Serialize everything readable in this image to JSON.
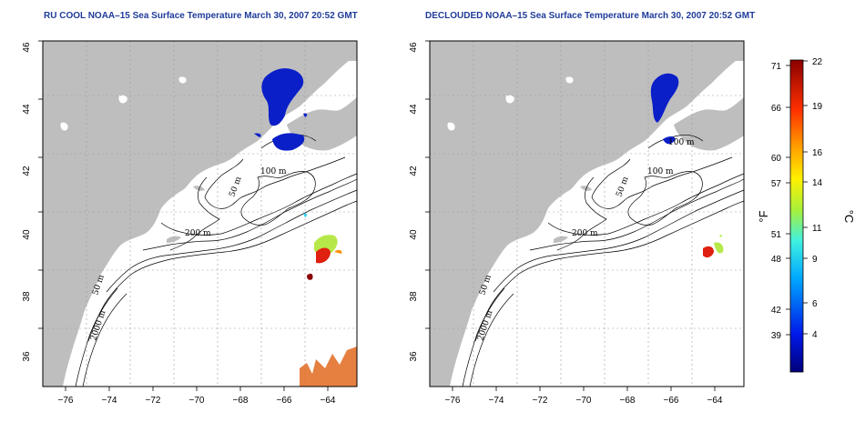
{
  "titles": {
    "left": "RU COOL NOAA–15 Sea Surface Temperature March 30, 2007 20:52 GMT",
    "right": "DECLOUDED NOAA–15 Sea Surface Temperature March 30, 2007 20:52 GMT"
  },
  "axes": {
    "x_ticks": [
      "−76",
      "−74",
      "−72",
      "−70",
      "−68",
      "−66",
      "−64"
    ],
    "y_ticks": [
      "36",
      "38",
      "40",
      "42",
      "44",
      "46"
    ]
  },
  "contour_labels": [
    "100 m",
    "50 m",
    "200 m",
    "50 m",
    "2000 m",
    "100 m",
    "200 m"
  ],
  "colorbar": {
    "fahrenheit_label": "°F",
    "celsius_label": "°C",
    "fahrenheit_ticks": [
      "71",
      "66",
      "60",
      "57",
      "51",
      "48",
      "42",
      "39"
    ],
    "celsius_ticks": [
      "22",
      "19",
      "16",
      "14",
      "11",
      "9",
      "6",
      "4"
    ]
  },
  "colors": {
    "land": "#bebebe",
    "title": "#1f3b9a",
    "cold_sst": "#0a1fc8",
    "warm_sst": "#d01010"
  }
}
